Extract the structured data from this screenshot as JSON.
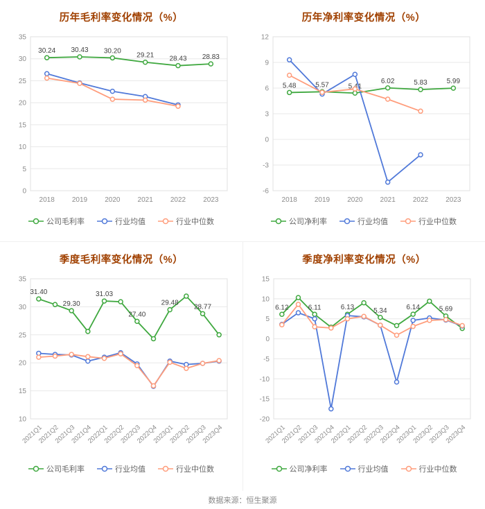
{
  "page": {
    "footer": "数据来源：恒生聚源"
  },
  "colors": {
    "company": "#3fa83f",
    "industry_avg": "#5079d9",
    "industry_median": "#ff9d7c",
    "title": "#a04000",
    "axis_text": "#8c8c8c",
    "grid": "#e8e8e8",
    "data_label": "#404040"
  },
  "chart_data": [
    {
      "type": "line",
      "title": "历年毛利率变化情况（%）",
      "categories": [
        "2018",
        "2019",
        "2020",
        "2021",
        "2022",
        "2023"
      ],
      "ylim": [
        0,
        35
      ],
      "yticks": [
        0,
        5,
        10,
        15,
        20,
        25,
        30,
        35
      ],
      "legend_position": "bottom",
      "grid": true,
      "series": [
        {
          "name": "公司毛利率",
          "color_key": "company",
          "values": [
            30.24,
            30.43,
            30.2,
            29.21,
            28.43,
            28.83
          ],
          "labels": [
            "30.24",
            "30.43",
            "30.20",
            "29.21",
            "28.43",
            "28.83"
          ]
        },
        {
          "name": "行业均值",
          "color_key": "industry_avg",
          "values": [
            26.6,
            24.5,
            22.6,
            21.4,
            19.5,
            null
          ]
        },
        {
          "name": "行业中位数",
          "color_key": "industry_median",
          "values": [
            25.6,
            24.4,
            20.8,
            20.6,
            19.2,
            null
          ]
        }
      ]
    },
    {
      "type": "line",
      "title": "历年净利率变化情况（%）",
      "categories": [
        "2018",
        "2019",
        "2020",
        "2021",
        "2022",
        "2023"
      ],
      "ylim": [
        -6,
        12
      ],
      "yticks": [
        -6,
        -3,
        0,
        3,
        6,
        9,
        12
      ],
      "legend_position": "bottom",
      "grid": true,
      "series": [
        {
          "name": "公司净利率",
          "color_key": "company",
          "values": [
            5.48,
            5.57,
            5.41,
            6.02,
            5.83,
            5.99
          ],
          "labels": [
            "5.48",
            "5.57",
            "5.41",
            "6.02",
            "5.83",
            "5.99"
          ]
        },
        {
          "name": "行业均值",
          "color_key": "industry_avg",
          "values": [
            9.3,
            5.3,
            7.6,
            -5.0,
            -1.8,
            null
          ]
        },
        {
          "name": "行业中位数",
          "color_key": "industry_median",
          "values": [
            7.5,
            5.5,
            5.9,
            4.7,
            3.3,
            null
          ]
        }
      ]
    },
    {
      "type": "line",
      "title": "季度毛利率变化情况（%）",
      "categories": [
        "2021Q1",
        "2021Q2",
        "2021Q3",
        "2021Q4",
        "2022Q1",
        "2022Q2",
        "2022Q3",
        "2022Q4",
        "2023Q1",
        "2023Q2",
        "2023Q3",
        "2023Q4"
      ],
      "ylim": [
        10,
        35
      ],
      "yticks": [
        10,
        15,
        20,
        25,
        30,
        35
      ],
      "legend_position": "bottom",
      "grid": true,
      "series": [
        {
          "name": "公司毛利率",
          "color_key": "company",
          "values": [
            31.4,
            30.4,
            29.3,
            25.6,
            31.03,
            30.9,
            27.4,
            24.3,
            29.48,
            31.9,
            28.77,
            25.0
          ],
          "labels": [
            "31.40",
            null,
            "29.30",
            null,
            "31.03",
            null,
            "27.40",
            null,
            "29.48",
            null,
            "28.77",
            null
          ]
        },
        {
          "name": "行业均值",
          "color_key": "industry_avg",
          "values": [
            21.7,
            21.5,
            21.4,
            20.3,
            21.0,
            21.8,
            19.8,
            15.8,
            20.3,
            19.7,
            19.9,
            20.3
          ]
        },
        {
          "name": "行业中位数",
          "color_key": "industry_median",
          "values": [
            21.0,
            21.2,
            21.5,
            21.1,
            20.8,
            21.6,
            19.5,
            15.9,
            20.1,
            19.0,
            19.9,
            20.4
          ]
        }
      ]
    },
    {
      "type": "line",
      "title": "季度净利率变化情况（%）",
      "categories": [
        "2021Q1",
        "2021Q2",
        "2021Q3",
        "2021Q4",
        "2022Q1",
        "2022Q2",
        "2022Q3",
        "2022Q4",
        "2023Q1",
        "2023Q2",
        "2023Q3",
        "2023Q4"
      ],
      "ylim": [
        -20,
        15
      ],
      "yticks": [
        -20,
        -15,
        -10,
        -5,
        0,
        5,
        10,
        15
      ],
      "legend_position": "bottom",
      "grid": true,
      "series": [
        {
          "name": "公司净利率",
          "color_key": "company",
          "values": [
            6.12,
            10.3,
            6.11,
            2.9,
            6.13,
            9.0,
            5.34,
            3.3,
            6.14,
            9.4,
            5.69,
            2.6
          ],
          "labels": [
            "6.12",
            null,
            "6.11",
            null,
            "6.13",
            null,
            "5.34",
            null,
            "6.14",
            null,
            "5.69",
            null
          ]
        },
        {
          "name": "行业均值",
          "color_key": "industry_avg",
          "values": [
            3.6,
            6.5,
            5.0,
            -17.5,
            5.8,
            5.5,
            3.4,
            -10.8,
            4.6,
            5.2,
            4.7,
            3.2
          ]
        },
        {
          "name": "行业中位数",
          "color_key": "industry_median",
          "values": [
            3.5,
            8.6,
            3.0,
            2.7,
            5.0,
            5.6,
            3.4,
            0.9,
            3.1,
            4.6,
            4.8,
            3.3
          ]
        }
      ]
    }
  ]
}
